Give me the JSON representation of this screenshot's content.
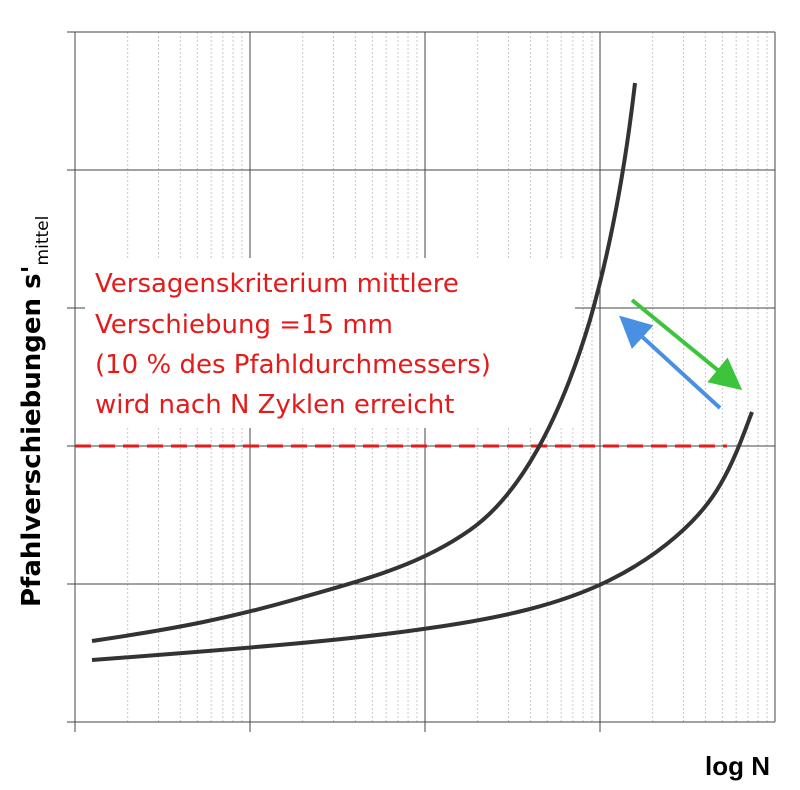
{
  "axes": {
    "y_label": "Pfahlverschiebungen s'",
    "y_label_subscript": "mittel",
    "x_label": "log N"
  },
  "annotation": {
    "lines": [
      "Versagenskriterium mittlere",
      "Verschiebung =15 mm",
      "(10 % des Pfahldurchmessers)",
      "wird nach N Zyklen erreicht"
    ]
  }
}
